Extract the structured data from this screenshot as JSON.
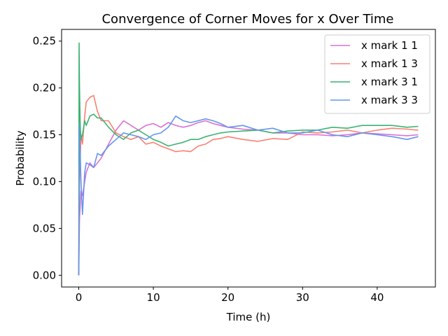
{
  "chart_data": {
    "type": "line",
    "title": "Convergence of Corner Moves for x Over Time",
    "xlabel": "Time (h)",
    "ylabel": "Probability",
    "xlim": [
      -2.3,
      47.8
    ],
    "ylim": [
      -0.0125,
      0.2625
    ],
    "xticks": [
      0,
      10,
      20,
      30,
      40
    ],
    "xtick_labels": [
      "0",
      "10",
      "20",
      "30",
      "40"
    ],
    "yticks": [
      0.0,
      0.05,
      0.1,
      0.15,
      0.2,
      0.25
    ],
    "ytick_labels": [
      "0.00",
      "0.05",
      "0.10",
      "0.15",
      "0.20",
      "0.25"
    ],
    "grid": false,
    "legend_position": "top-right",
    "series": [
      {
        "name": "x mark 1 1",
        "color": "#da70d6",
        "x": [
          0,
          0.1,
          0.3,
          0.5,
          0.8,
          1.0,
          1.5,
          2.0,
          2.5,
          3.0,
          4.0,
          5.0,
          6.0,
          7.0,
          8.0,
          9.0,
          10.0,
          11.0,
          12.0,
          13.0,
          14.0,
          15.0,
          16.0,
          17.0,
          18.0,
          19.0,
          20.0,
          22.0,
          24.0,
          26.0,
          28.0,
          30.0,
          32.0,
          34.0,
          36.0,
          38.0,
          40.0,
          42.0,
          44.0,
          45.5
        ],
        "y": [
          0.0,
          0.06,
          0.09,
          0.085,
          0.1,
          0.11,
          0.12,
          0.115,
          0.12,
          0.125,
          0.14,
          0.155,
          0.165,
          0.16,
          0.155,
          0.16,
          0.162,
          0.158,
          0.163,
          0.16,
          0.158,
          0.16,
          0.163,
          0.165,
          0.162,
          0.16,
          0.158,
          0.156,
          0.155,
          0.152,
          0.152,
          0.15,
          0.15,
          0.149,
          0.15,
          0.152,
          0.151,
          0.15,
          0.149,
          0.15
        ]
      },
      {
        "name": "x mark 1 3",
        "color": "#fa8072",
        "x": [
          0,
          0.1,
          0.3,
          0.5,
          0.8,
          1.0,
          1.5,
          2.0,
          2.5,
          3.0,
          4.0,
          5.0,
          6.0,
          7.0,
          8.0,
          9.0,
          10.0,
          11.0,
          12.0,
          13.0,
          14.0,
          15.0,
          16.0,
          17.0,
          18.0,
          19.0,
          20.0,
          22.0,
          24.0,
          26.0,
          28.0,
          30.0,
          32.0,
          34.0,
          36.0,
          38.0,
          40.0,
          42.0,
          44.0,
          45.5
        ],
        "y": [
          0.0,
          0.1,
          0.15,
          0.14,
          0.17,
          0.185,
          0.19,
          0.192,
          0.175,
          0.165,
          0.165,
          0.152,
          0.148,
          0.145,
          0.148,
          0.14,
          0.142,
          0.138,
          0.135,
          0.132,
          0.133,
          0.132,
          0.138,
          0.14,
          0.145,
          0.146,
          0.148,
          0.145,
          0.143,
          0.146,
          0.145,
          0.153,
          0.152,
          0.153,
          0.155,
          0.152,
          0.155,
          0.157,
          0.156,
          0.155
        ]
      },
      {
        "name": "x mark 3 1",
        "color": "#3cb371",
        "x": [
          0,
          0.05,
          0.1,
          0.2,
          0.3,
          0.5,
          0.8,
          1.0,
          1.5,
          2.0,
          2.5,
          3.0,
          4.0,
          5.0,
          6.0,
          7.0,
          8.0,
          9.0,
          10.0,
          11.0,
          12.0,
          13.0,
          14.0,
          15.0,
          16.0,
          17.0,
          18.0,
          19.0,
          20.0,
          22.0,
          24.0,
          26.0,
          28.0,
          30.0,
          32.0,
          34.0,
          36.0,
          38.0,
          40.0,
          42.0,
          44.0,
          45.5
        ],
        "y": [
          0.0,
          0.248,
          0.2,
          0.16,
          0.145,
          0.15,
          0.165,
          0.16,
          0.17,
          0.172,
          0.168,
          0.168,
          0.158,
          0.15,
          0.145,
          0.152,
          0.155,
          0.15,
          0.145,
          0.142,
          0.138,
          0.14,
          0.142,
          0.145,
          0.145,
          0.148,
          0.15,
          0.152,
          0.153,
          0.154,
          0.155,
          0.152,
          0.154,
          0.155,
          0.155,
          0.158,
          0.157,
          0.16,
          0.16,
          0.16,
          0.158,
          0.159
        ]
      },
      {
        "name": "x mark 3 3",
        "color": "#6495ed",
        "x": [
          0,
          0.1,
          0.3,
          0.5,
          0.8,
          1.0,
          1.5,
          2.0,
          2.5,
          3.0,
          4.0,
          5.0,
          6.0,
          7.0,
          8.0,
          9.0,
          10.0,
          11.0,
          12.0,
          13.0,
          14.0,
          15.0,
          16.0,
          17.0,
          18.0,
          19.0,
          20.0,
          22.0,
          24.0,
          26.0,
          28.0,
          30.0,
          32.0,
          34.0,
          36.0,
          38.0,
          40.0,
          42.0,
          44.0,
          45.5
        ],
        "y": [
          0.0,
          0.16,
          0.1,
          0.065,
          0.11,
          0.12,
          0.118,
          0.115,
          0.13,
          0.128,
          0.138,
          0.145,
          0.152,
          0.15,
          0.148,
          0.145,
          0.15,
          0.152,
          0.158,
          0.17,
          0.165,
          0.163,
          0.165,
          0.167,
          0.165,
          0.162,
          0.158,
          0.16,
          0.155,
          0.157,
          0.152,
          0.152,
          0.155,
          0.15,
          0.148,
          0.152,
          0.15,
          0.148,
          0.145,
          0.148
        ]
      }
    ]
  }
}
